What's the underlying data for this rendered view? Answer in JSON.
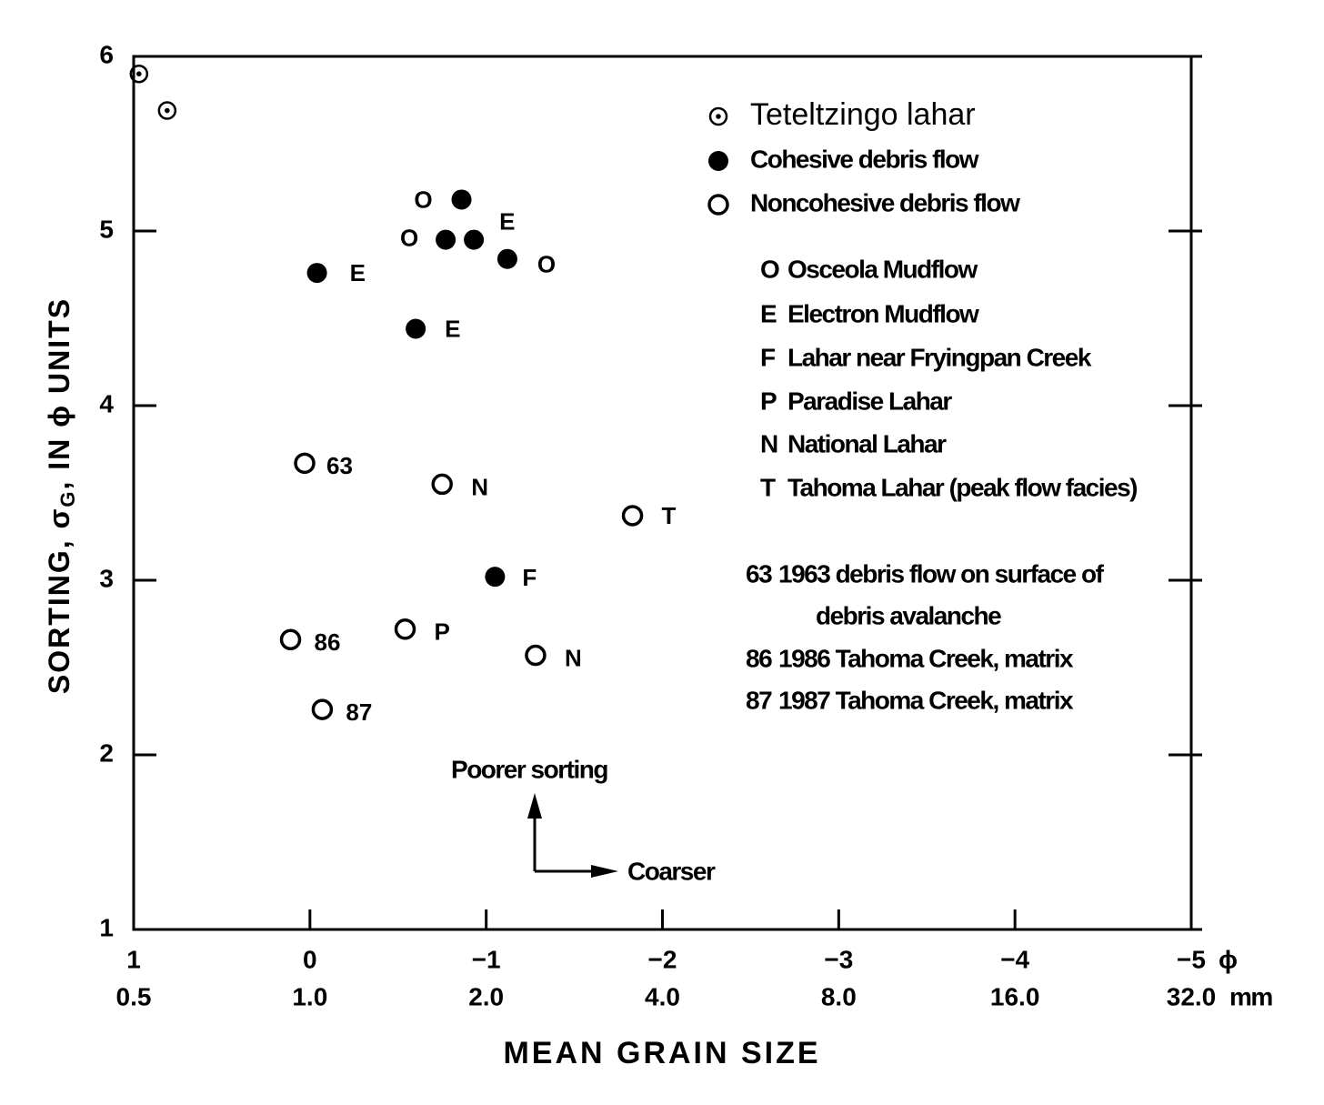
{
  "chart_data": {
    "type": "scatter",
    "xlabel": "MEAN GRAIN SIZE",
    "ylabel": [
      "SORTING, σ",
      "G",
      ", IN ϕ  UNITS"
    ],
    "xlim": [
      1,
      -5
    ],
    "ylim": [
      1,
      6
    ],
    "xticks": [
      1,
      0,
      {
        "value": -1,
        "label": "−1"
      },
      {
        "value": -2,
        "label": "−2"
      },
      {
        "value": -3,
        "label": "−3"
      },
      {
        "value": -4,
        "label": "−4"
      },
      {
        "value": -5,
        "label": "−5"
      }
    ],
    "x_unit": "ϕ",
    "x2ticks": [
      {
        "value": 1,
        "label": "0.5"
      },
      {
        "value": 0,
        "label": "1.0"
      },
      {
        "value": -1,
        "label": "2.0"
      },
      {
        "value": -2,
        "label": "4.0"
      },
      {
        "value": -3,
        "label": "8.0"
      },
      {
        "value": -4,
        "label": "16.0"
      },
      {
        "value": -5,
        "label": "32.0"
      }
    ],
    "x2_unit": "mm",
    "yticks": [
      1,
      2,
      3,
      4,
      5,
      6
    ],
    "series": [
      {
        "name": "Teteltzingo lahar",
        "marker": "dotted-circle",
        "color": "#000000",
        "x": [
          0.97,
          0.81
        ],
        "values": [
          5.9,
          5.69
        ]
      },
      {
        "name": "Cohesive debris flow",
        "marker": "filled-circle",
        "color": "#000000",
        "x": [
          -0.86,
          -0.77,
          -0.93,
          -1.12,
          -0.04,
          -0.6,
          -1.05
        ],
        "values": [
          5.18,
          4.95,
          4.95,
          4.84,
          4.76,
          4.44,
          3.02
        ],
        "labels": [
          "O",
          "O",
          "E",
          "O",
          "E",
          "E",
          "F"
        ]
      },
      {
        "name": "Noncohesive debris flow",
        "marker": "open-circle",
        "color": "#000000",
        "x": [
          0.03,
          -0.75,
          -1.83,
          -0.54,
          0.11,
          -1.28,
          -0.07
        ],
        "values": [
          3.67,
          3.55,
          3.37,
          2.72,
          2.66,
          2.57,
          2.26
        ],
        "labels": [
          "63",
          "N",
          "T",
          "P",
          "86",
          "N",
          "87"
        ]
      }
    ],
    "key": [
      {
        "symbol": "O",
        "text": [
          "Osceola Mudflow"
        ]
      },
      {
        "symbol": "E",
        "text": [
          "Electron Mudflow"
        ]
      },
      {
        "symbol": "F",
        "text": [
          "Lahar near Fryingpan Creek"
        ]
      },
      {
        "symbol": "P",
        "text": [
          "Paradise Lahar"
        ]
      },
      {
        "symbol": "N",
        "text": [
          "National Lahar"
        ]
      },
      {
        "symbol": "T",
        "text": [
          "Tahoma Lahar (peak flow facies)"
        ]
      },
      {
        "symbol": "63",
        "text": [
          "1963 debris flow on surface of",
          "debris avalanche"
        ]
      },
      {
        "symbol": "86",
        "text": [
          "1986 Tahoma Creek, matrix"
        ]
      },
      {
        "symbol": "87",
        "text": [
          "1987 Tahoma Creek, matrix"
        ]
      }
    ],
    "annotations": [
      "Poorer sorting",
      "Coarser"
    ]
  }
}
